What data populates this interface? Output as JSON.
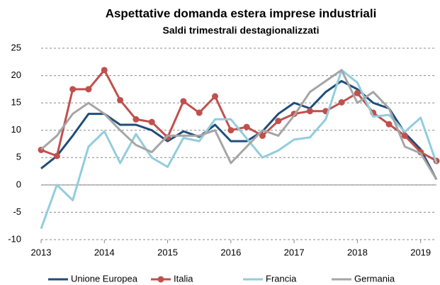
{
  "chart_data": {
    "type": "line",
    "title": "Aspettative domanda estera imprese industriali",
    "subtitle": "Saldi trimestrali destagionalizzati",
    "x": [
      2013,
      2013.25,
      2013.5,
      2013.75,
      2014,
      2014.25,
      2014.5,
      2014.75,
      2015,
      2015.25,
      2015.5,
      2015.75,
      2016,
      2016.25,
      2016.5,
      2016.75,
      2017,
      2017.25,
      2017.5,
      2017.75,
      2018,
      2018.25,
      2018.5,
      2018.75,
      2019,
      2019.25
    ],
    "xlim": [
      2013,
      2019.25
    ],
    "xticks": [
      2013,
      2014,
      2015,
      2016,
      2017,
      2018,
      2019
    ],
    "ylim": [
      -10,
      25
    ],
    "yticks": [
      -10,
      -5,
      0,
      5,
      10,
      15,
      20,
      25
    ],
    "grid": true,
    "legend": "bottom",
    "series": [
      {
        "name": "Unione Europea",
        "color": "#1f4e79",
        "values": [
          3,
          5.3,
          9,
          13,
          13,
          11,
          11,
          10,
          8,
          9.8,
          8.8,
          11,
          8,
          8,
          9.8,
          13,
          15,
          14,
          17,
          19,
          17.5,
          15,
          14,
          9.5,
          6.5,
          1
        ]
      },
      {
        "name": "Italia",
        "color": "#c0504d",
        "markers": true,
        "values": [
          6.4,
          5.3,
          17.5,
          17.5,
          21,
          15.5,
          12,
          11.5,
          8.7,
          15.3,
          13.2,
          16.2,
          10,
          10.6,
          9,
          11.7,
          13,
          13.5,
          13.5,
          15.1,
          16.8,
          13.2,
          11.1,
          9,
          6,
          4.4
        ]
      },
      {
        "name": "Francia",
        "color": "#92cddc",
        "values": [
          -8,
          0,
          -2.8,
          7,
          9.8,
          4,
          9.3,
          5,
          3.3,
          8.6,
          8,
          12,
          12,
          8.5,
          5,
          6.3,
          8.3,
          8.7,
          12,
          21,
          18.7,
          12.5,
          12.8,
          9.7,
          12.3,
          4
        ]
      },
      {
        "name": "Germania",
        "color": "#a5a5a5",
        "values": [
          6.5,
          9,
          13,
          15,
          13,
          10,
          7.3,
          6,
          9,
          9,
          9,
          10,
          4,
          7,
          10,
          9,
          12.7,
          17,
          19,
          21,
          15,
          17,
          14,
          7,
          5.8,
          1
        ]
      }
    ]
  }
}
